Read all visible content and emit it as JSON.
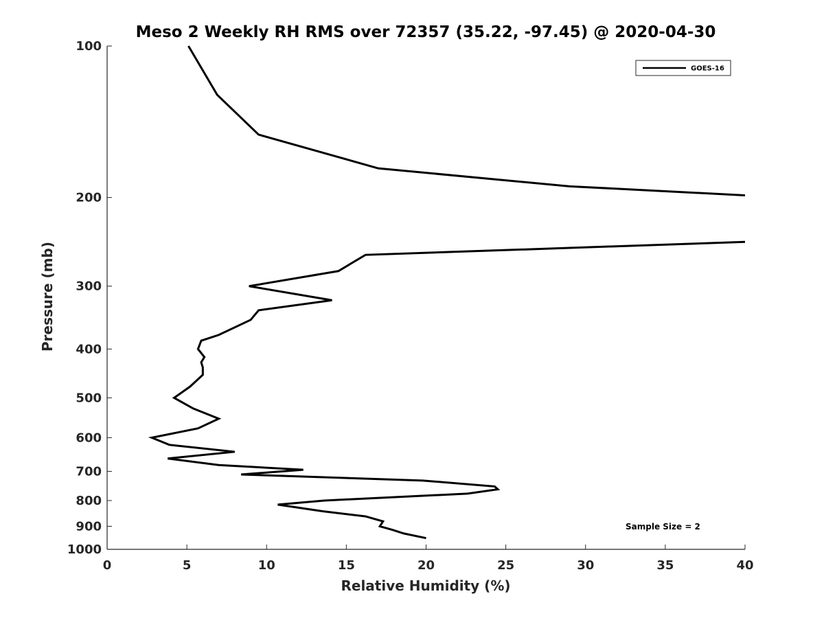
{
  "chart_data": {
    "type": "line",
    "title": "Meso 2 Weekly RH RMS over 72357 (35.22, -97.45) @ 2020-04-30",
    "xlabel": "Relative Humidity (%)",
    "ylabel": "Pressure (mb)",
    "xlim": [
      0,
      40
    ],
    "ylim": [
      100,
      1000
    ],
    "y_scale": "log",
    "y_reversed": true,
    "grid": false,
    "x_ticks": [
      0,
      5,
      10,
      15,
      20,
      25,
      30,
      35,
      40
    ],
    "x_tick_labels": [
      "0",
      "5",
      "10",
      "15",
      "20",
      "25",
      "30",
      "35",
      "40"
    ],
    "y_ticks": [
      100,
      200,
      300,
      400,
      500,
      600,
      700,
      800,
      900,
      1000
    ],
    "y_tick_labels": [
      "100",
      "200",
      "300",
      "400",
      "500",
      "600",
      "700",
      "800",
      "900",
      "1000"
    ],
    "legend": {
      "position": "top-right",
      "entries": [
        "GOES-16"
      ]
    },
    "annotation": "Sample Size = 2",
    "series": [
      {
        "name": "GOES-16",
        "color": "#000000",
        "points": [
          [
            5.1,
            100
          ],
          [
            6.9,
            125
          ],
          [
            9.5,
            150
          ],
          [
            17.0,
            175
          ],
          [
            29.0,
            190
          ],
          [
            40.0,
            198
          ],
          [
            null,
            null
          ],
          [
            40.0,
            245
          ],
          [
            16.2,
            260
          ],
          [
            14.5,
            280
          ],
          [
            8.9,
            300
          ],
          [
            14.1,
            320
          ],
          [
            9.5,
            335
          ],
          [
            9.0,
            350
          ],
          [
            7.0,
            375
          ],
          [
            5.9,
            385
          ],
          [
            5.7,
            400
          ],
          [
            6.1,
            415
          ],
          [
            5.9,
            425
          ],
          [
            6.0,
            435
          ],
          [
            6.0,
            450
          ],
          [
            5.2,
            475
          ],
          [
            4.2,
            500
          ],
          [
            5.4,
            525
          ],
          [
            7.0,
            550
          ],
          [
            5.7,
            575
          ],
          [
            2.8,
            600
          ],
          [
            3.9,
            620
          ],
          [
            8.0,
            640
          ],
          [
            3.8,
            660
          ],
          [
            7.0,
            680
          ],
          [
            12.3,
            695
          ],
          [
            8.4,
            710
          ],
          [
            19.8,
            730
          ],
          [
            24.3,
            750
          ],
          [
            24.5,
            760
          ],
          [
            22.6,
            775
          ],
          [
            13.6,
            800
          ],
          [
            10.7,
            815
          ],
          [
            13.5,
            840
          ],
          [
            16.2,
            860
          ],
          [
            17.3,
            880
          ],
          [
            17.2,
            890
          ],
          [
            17.1,
            900
          ],
          [
            17.9,
            915
          ],
          [
            18.6,
            930
          ],
          [
            20.0,
            950
          ]
        ]
      }
    ]
  }
}
